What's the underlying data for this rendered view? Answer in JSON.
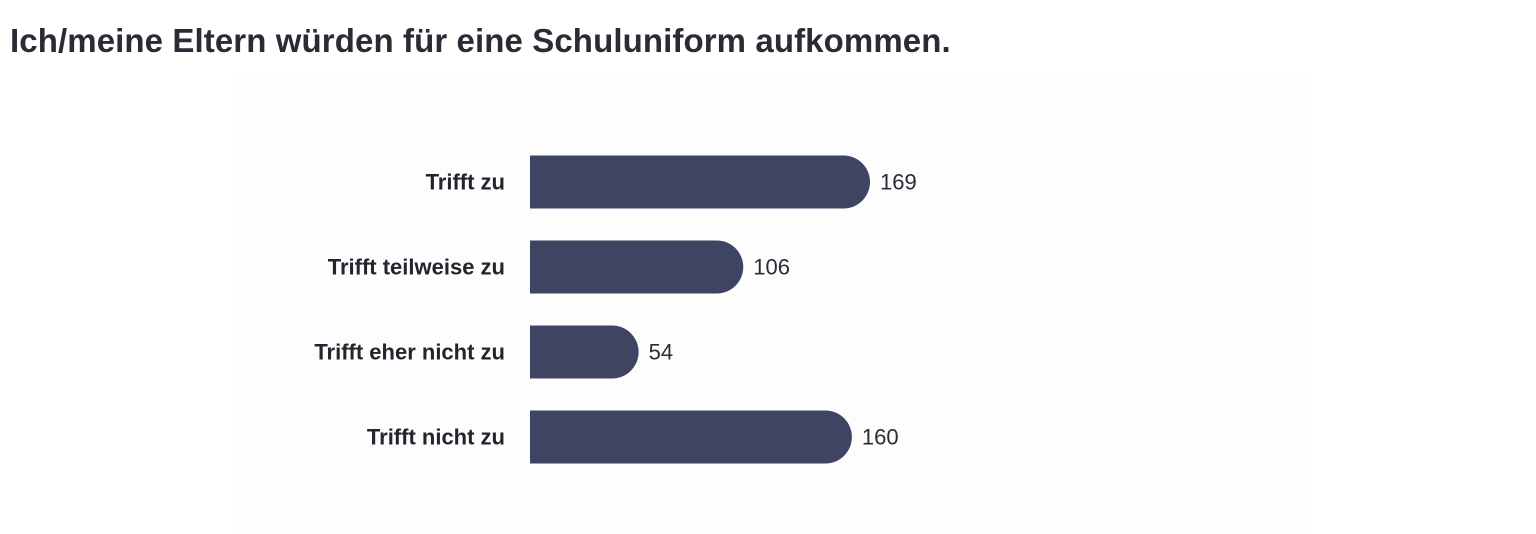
{
  "colors": {
    "bar": "#3f4462",
    "category_text": "#24242e",
    "value_text": "#2b2b35",
    "title_text": "#2b2b35"
  },
  "chart_data": {
    "type": "bar",
    "orientation": "horizontal",
    "title": "Ich/meine Eltern würden für eine Schuluniform aufkommen.",
    "categories": [
      "Trifft zu",
      "Trifft teilweise zu",
      "Trifft eher nicht zu",
      "Trifft nicht zu"
    ],
    "values": [
      169,
      106,
      54,
      160
    ],
    "data_labels": [
      "169",
      "106",
      "54",
      "160"
    ],
    "xlabel": "",
    "ylabel": "",
    "xlim": [
      0,
      169
    ],
    "grid": false,
    "legend": "none"
  }
}
